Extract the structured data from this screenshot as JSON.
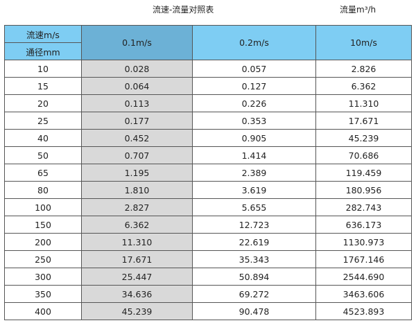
{
  "title": "流速-流量对照表",
  "unit": "流量m³/h",
  "header": {
    "velocity_label": "流速m/s",
    "diameter_label": "通径mm",
    "columns": [
      "0.1m/s",
      "0.2m/s",
      "10m/s"
    ]
  },
  "colors": {
    "header": "#7ecdf3",
    "selected_header": "#6cb1d6",
    "selected_column": "#d9d9d9"
  },
  "rows": [
    [
      "10",
      "0.028",
      "0.057",
      "2.826"
    ],
    [
      "15",
      "0.064",
      "0.127",
      "6.362"
    ],
    [
      "20",
      "0.113",
      "0.226",
      "11.310"
    ],
    [
      "25",
      "0.177",
      "0.353",
      "17.671"
    ],
    [
      "40",
      "0.452",
      "0.905",
      "45.239"
    ],
    [
      "50",
      "0.707",
      "1.414",
      "70.686"
    ],
    [
      "65",
      "1.195",
      "2.389",
      "119.459"
    ],
    [
      "80",
      "1.810",
      "3.619",
      "180.956"
    ],
    [
      "100",
      "2.827",
      "5.655",
      "282.743"
    ],
    [
      "150",
      "6.362",
      "12.723",
      "636.173"
    ],
    [
      "200",
      "11.310",
      "22.619",
      "1130.973"
    ],
    [
      "250",
      "17.671",
      "35.343",
      "1767.146"
    ],
    [
      "300",
      "25.447",
      "50.894",
      "2544.690"
    ],
    [
      "350",
      "34.636",
      "69.272",
      "3463.606"
    ],
    [
      "400",
      "45.239",
      "90.478",
      "4523.893"
    ]
  ]
}
